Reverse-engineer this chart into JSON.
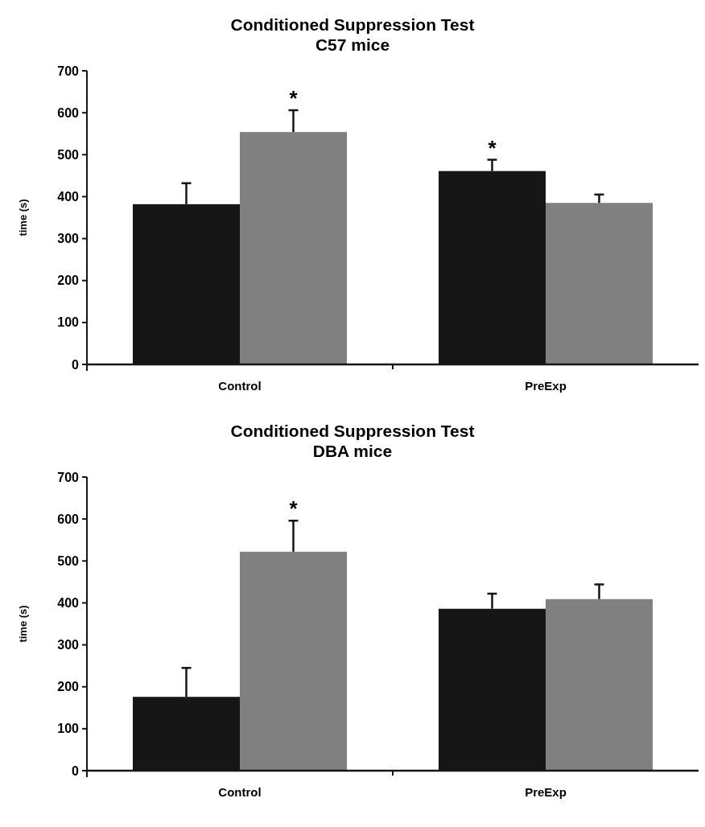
{
  "chart_data": [
    {
      "type": "bar",
      "title": "Conditioned Suppression Test",
      "subtitle": "C57 mice",
      "ylabel": "time (s)",
      "categories": [
        "Control",
        "PreExp"
      ],
      "ylim": [
        0,
        700
      ],
      "yticks": [
        0,
        100,
        200,
        300,
        400,
        500,
        600,
        700
      ],
      "grid": false,
      "series": [
        {
          "color": "#161616",
          "values": [
            382,
            461
          ],
          "errors": [
            [
              382,
              432
            ],
            [
              461,
              488
            ]
          ]
        },
        {
          "color": "#808080",
          "values": [
            554,
            385
          ],
          "errors": [
            [
              554,
              606
            ],
            [
              385,
              405
            ]
          ]
        }
      ],
      "annotations": [
        "*",
        "*"
      ]
    },
    {
      "type": "bar",
      "title": "Conditioned Suppression Test",
      "subtitle": "DBA mice",
      "ylabel": "time (s)",
      "categories": [
        "Control",
        "PreExp"
      ],
      "ylim": [
        0,
        700
      ],
      "yticks": [
        0,
        100,
        200,
        300,
        400,
        500,
        600,
        700
      ],
      "grid": false,
      "series": [
        {
          "color": "#161616",
          "values": [
            176,
            386
          ],
          "errors": [
            [
              176,
              245
            ],
            [
              386,
              422
            ]
          ]
        },
        {
          "color": "#808080",
          "values": [
            522,
            409
          ],
          "errors": [
            [
              522,
              596
            ],
            [
              409,
              444
            ]
          ]
        }
      ],
      "annotations": [
        "*"
      ]
    }
  ]
}
